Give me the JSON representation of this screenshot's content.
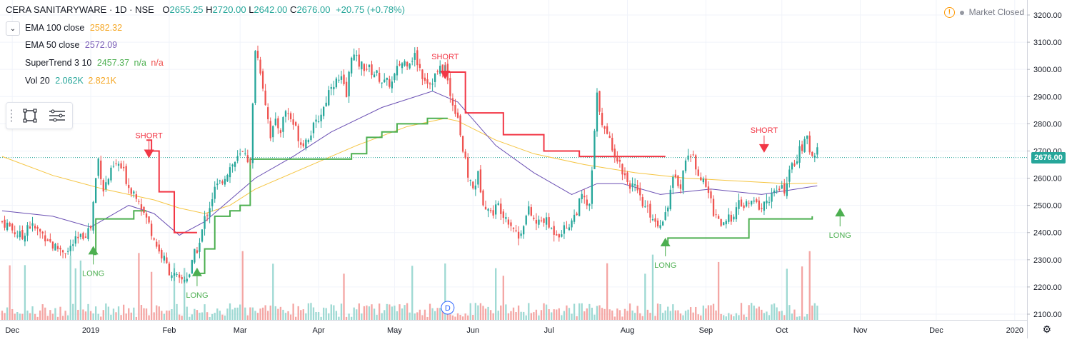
{
  "header": {
    "symbol": "CERA SANITARYWARE · 1D · NSE",
    "open_label": "O",
    "open": "2655.25",
    "high_label": "H",
    "high": "2720.00",
    "low_label": "L",
    "low": "2642.00",
    "close_label": "C",
    "close": "2676.00",
    "change": "+20.75 (+0.78%)"
  },
  "legend": [
    {
      "name": "EMA 100 close",
      "value": "2582.32",
      "color": "#f5a623"
    },
    {
      "name": "EMA 50 close",
      "value": "2572.09",
      "color": "#7b5fb8"
    },
    {
      "name": "SuperTrend 3 10",
      "value": "2457.37",
      "extra1": "n/a",
      "extra2": "n/a",
      "color": "#4caf50"
    },
    {
      "name": "Vol 20",
      "value": "2.062K",
      "value2": "2.821K",
      "color": "#26a69a",
      "color2": "#f5a623"
    }
  ],
  "market_status": "Market Closed",
  "price_tag": "2676.00",
  "dividend_marker": "D",
  "colors": {
    "up": "#26a69a",
    "down": "#ef5350",
    "vol_up": "#9ed9d3",
    "vol_down": "#f4a6a4",
    "st_up": "#4caf50",
    "st_down": "#f23645",
    "ema100": "#f5c542",
    "ema50": "#6a4fb3"
  },
  "chart_data": {
    "type": "candlestick",
    "title": "CERA SANITARYWARE · 1D · NSE",
    "ylim": [
      2100,
      3230
    ],
    "y_ticks": [
      "3200.00",
      "3100.00",
      "3000.00",
      "2900.00",
      "2800.00",
      "2700.00",
      "2600.00",
      "2500.00",
      "2400.00",
      "2300.00",
      "2200.00",
      "2100.00"
    ],
    "x_ticks": [
      "Dec",
      "2019",
      "Feb",
      "Mar",
      "Apr",
      "May",
      "Jun",
      "Jul",
      "Aug",
      "Sep",
      "Oct",
      "Nov",
      "Dec",
      "2020"
    ],
    "x_tick_days": [
      4,
      35,
      66,
      94,
      125,
      155,
      186,
      216,
      247,
      278,
      308,
      339,
      369,
      400
    ],
    "last_day": 404,
    "closes": [
      [
        0,
        2440
      ],
      [
        2,
        2430
      ],
      [
        4,
        2410
      ],
      [
        8,
        2380
      ],
      [
        10,
        2430
      ],
      [
        12,
        2420
      ],
      [
        15,
        2400
      ],
      [
        18,
        2380
      ],
      [
        20,
        2350
      ],
      [
        23,
        2340
      ],
      [
        26,
        2330
      ],
      [
        28,
        2360
      ],
      [
        31,
        2380
      ],
      [
        33,
        2400
      ],
      [
        35,
        2420
      ],
      [
        37,
        2600
      ],
      [
        38,
        2670
      ],
      [
        40,
        2560
      ],
      [
        42,
        2600
      ],
      [
        44,
        2640
      ],
      [
        46,
        2650
      ],
      [
        48,
        2620
      ],
      [
        50,
        2570
      ],
      [
        52,
        2550
      ],
      [
        54,
        2530
      ],
      [
        56,
        2470
      ],
      [
        58,
        2430
      ],
      [
        60,
        2380
      ],
      [
        62,
        2330
      ],
      [
        64,
        2300
      ],
      [
        66,
        2260
      ],
      [
        68,
        2240
      ],
      [
        70,
        2220
      ],
      [
        72,
        2230
      ],
      [
        74,
        2250
      ],
      [
        76,
        2320
      ],
      [
        78,
        2360
      ],
      [
        80,
        2450
      ],
      [
        82,
        2500
      ],
      [
        84,
        2560
      ],
      [
        86,
        2580
      ],
      [
        88,
        2610
      ],
      [
        90,
        2640
      ],
      [
        92,
        2660
      ],
      [
        94,
        2680
      ],
      [
        96,
        2700
      ],
      [
        98,
        2650
      ],
      [
        100,
        3080
      ],
      [
        102,
        3000
      ],
      [
        104,
        2880
      ],
      [
        106,
        2760
      ],
      [
        108,
        2800
      ],
      [
        110,
        2780
      ],
      [
        112,
        2850
      ],
      [
        114,
        2820
      ],
      [
        116,
        2780
      ],
      [
        118,
        2730
      ],
      [
        120,
        2740
      ],
      [
        124,
        2800
      ],
      [
        127,
        2860
      ],
      [
        130,
        2950
      ],
      [
        134,
        2960
      ],
      [
        136,
        2900
      ],
      [
        138,
        3060
      ],
      [
        141,
        3020
      ],
      [
        145,
        3000
      ],
      [
        148,
        2980
      ],
      [
        151,
        2950
      ],
      [
        154,
        2950
      ],
      [
        157,
        3020
      ],
      [
        160,
        3030
      ],
      [
        163,
        3050
      ],
      [
        166,
        2980
      ],
      [
        169,
        2950
      ],
      [
        172,
        2990
      ],
      [
        175,
        3010
      ],
      [
        177,
        2900
      ],
      [
        180,
        2830
      ],
      [
        182,
        2700
      ],
      [
        184,
        2610
      ],
      [
        186,
        2560
      ],
      [
        188,
        2610
      ],
      [
        190,
        2520
      ],
      [
        193,
        2470
      ],
      [
        196,
        2500
      ],
      [
        199,
        2460
      ],
      [
        202,
        2420
      ],
      [
        204,
        2380
      ],
      [
        206,
        2440
      ],
      [
        208,
        2480
      ],
      [
        211,
        2430
      ],
      [
        214,
        2450
      ],
      [
        217,
        2410
      ],
      [
        220,
        2400
      ],
      [
        223,
        2420
      ],
      [
        226,
        2460
      ],
      [
        229,
        2530
      ],
      [
        232,
        2490
      ],
      [
        235,
        2900
      ],
      [
        238,
        2770
      ],
      [
        241,
        2720
      ],
      [
        244,
        2650
      ],
      [
        247,
        2590
      ],
      [
        250,
        2560
      ],
      [
        253,
        2500
      ],
      [
        256,
        2470
      ],
      [
        259,
        2430
      ],
      [
        262,
        2470
      ],
      [
        265,
        2590
      ],
      [
        268,
        2580
      ],
      [
        271,
        2700
      ],
      [
        274,
        2650
      ],
      [
        277,
        2580
      ],
      [
        279,
        2550
      ],
      [
        281,
        2480
      ],
      [
        283,
        2450
      ],
      [
        285,
        2420
      ],
      [
        288,
        2460
      ],
      [
        291,
        2500
      ],
      [
        294,
        2500
      ],
      [
        297,
        2510
      ],
      [
        300,
        2490
      ],
      [
        303,
        2530
      ],
      [
        306,
        2550
      ],
      [
        309,
        2560
      ],
      [
        312,
        2640
      ],
      [
        315,
        2700
      ],
      [
        318,
        2740
      ],
      [
        320,
        2680
      ],
      [
        322,
        2720
      ]
    ],
    "ema100": [
      [
        0,
        2680
      ],
      [
        20,
        2610
      ],
      [
        40,
        2560
      ],
      [
        60,
        2520
      ],
      [
        70,
        2490
      ],
      [
        80,
        2470
      ],
      [
        90,
        2500
      ],
      [
        100,
        2560
      ],
      [
        120,
        2640
      ],
      [
        140,
        2720
      ],
      [
        160,
        2790
      ],
      [
        175,
        2820
      ],
      [
        180,
        2810
      ],
      [
        195,
        2740
      ],
      [
        210,
        2690
      ],
      [
        230,
        2650
      ],
      [
        250,
        2620
      ],
      [
        270,
        2600
      ],
      [
        290,
        2590
      ],
      [
        310,
        2580
      ],
      [
        322,
        2582
      ]
    ],
    "ema50": [
      [
        0,
        2480
      ],
      [
        20,
        2460
      ],
      [
        35,
        2420
      ],
      [
        50,
        2500
      ],
      [
        60,
        2470
      ],
      [
        70,
        2390
      ],
      [
        80,
        2440
      ],
      [
        90,
        2520
      ],
      [
        100,
        2600
      ],
      [
        115,
        2680
      ],
      [
        130,
        2770
      ],
      [
        150,
        2860
      ],
      [
        170,
        2920
      ],
      [
        180,
        2880
      ],
      [
        195,
        2720
      ],
      [
        210,
        2620
      ],
      [
        225,
        2540
      ],
      [
        235,
        2580
      ],
      [
        245,
        2580
      ],
      [
        260,
        2540
      ],
      [
        280,
        2560
      ],
      [
        300,
        2540
      ],
      [
        322,
        2572
      ]
    ],
    "supertrend_segments": [
      {
        "dir": "up",
        "points": [
          [
            36,
            2320
          ],
          [
            37,
            2450
          ],
          [
            48,
            2450
          ],
          [
            52,
            2480
          ],
          [
            57,
            2480
          ]
        ]
      },
      {
        "dir": "down",
        "points": [
          [
            57,
            2740
          ],
          [
            59,
            2700
          ],
          [
            62,
            2550
          ],
          [
            68,
            2400
          ],
          [
            77,
            2400
          ]
        ]
      },
      {
        "dir": "up",
        "points": [
          [
            77,
            2250
          ],
          [
            80,
            2340
          ],
          [
            84,
            2460
          ],
          [
            90,
            2480
          ],
          [
            94,
            2500
          ],
          [
            98,
            2670
          ],
          [
            130,
            2670
          ],
          [
            138,
            2690
          ],
          [
            144,
            2750
          ],
          [
            150,
            2770
          ],
          [
            156,
            2800
          ],
          [
            168,
            2820
          ],
          [
            176,
            2820
          ]
        ]
      },
      {
        "dir": "down",
        "points": [
          [
            176,
            2990
          ],
          [
            180,
            2990
          ],
          [
            183,
            2840
          ],
          [
            195,
            2840
          ],
          [
            198,
            2760
          ],
          [
            210,
            2760
          ],
          [
            214,
            2700
          ],
          [
            225,
            2700
          ],
          [
            228,
            2680
          ],
          [
            262,
            2680
          ]
        ]
      },
      {
        "dir": "up",
        "points": [
          [
            262,
            2360
          ],
          [
            263,
            2380
          ],
          [
            278,
            2380
          ],
          [
            290,
            2380
          ],
          [
            295,
            2450
          ],
          [
            318,
            2450
          ],
          [
            320,
            2460
          ]
        ]
      }
    ],
    "signals": [
      {
        "day": 36,
        "type": "LONG",
        "price": 2330
      },
      {
        "day": 58,
        "type": "SHORT",
        "price": 2700
      },
      {
        "day": 77,
        "type": "LONG",
        "price": 2250
      },
      {
        "day": 175,
        "type": "SHORT",
        "price": 2990
      },
      {
        "day": 262,
        "type": "LONG",
        "price": 2360
      },
      {
        "day": 301,
        "type": "SHORT",
        "price": 2720
      },
      {
        "day": 331,
        "type": "LONG",
        "price": 2470
      }
    ],
    "volume_ylim": [
      0,
      100
    ]
  }
}
